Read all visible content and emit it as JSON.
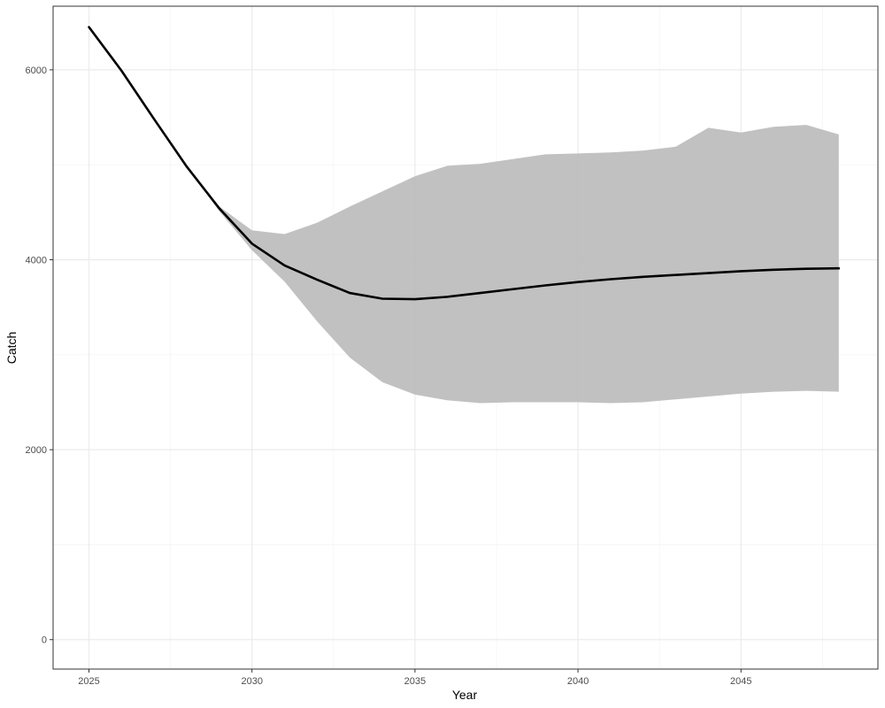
{
  "chart_data": {
    "type": "line",
    "title": "",
    "xlabel": "Year",
    "ylabel": "Catch",
    "xlim": [
      2023.9,
      2049.2
    ],
    "ylim": [
      -310,
      6670
    ],
    "x_major_ticks": [
      2025,
      2030,
      2035,
      2040,
      2045
    ],
    "y_major_ticks": [
      0,
      2000,
      4000,
      6000
    ],
    "x_tick_labels": [
      "2025",
      "2030",
      "2035",
      "2040",
      "2045"
    ],
    "y_tick_labels": [
      "0",
      "2000",
      "4000",
      "6000"
    ],
    "grid": true,
    "legend": "none",
    "colors": {
      "line": "#000000",
      "ribbon": "#bebebe",
      "grid_major": "#ebebeb",
      "grid_minor": "#f5f5f5",
      "panel_border": "#333333"
    },
    "x": [
      2025,
      2026,
      2027,
      2028,
      2029,
      2030,
      2031,
      2032,
      2033,
      2034,
      2035,
      2036,
      2037,
      2038,
      2039,
      2040,
      2041,
      2042,
      2043,
      2044,
      2045,
      2046,
      2047,
      2048
    ],
    "series": [
      {
        "role": "median",
        "values": [
          6450,
          5990,
          5480,
          4980,
          4540,
          4170,
          3940,
          3790,
          3650,
          3590,
          3585,
          3610,
          3650,
          3690,
          3730,
          3765,
          3795,
          3820,
          3840,
          3860,
          3880,
          3895,
          3905,
          3910
        ]
      },
      {
        "role": "ribbon-upper",
        "values": [
          6450,
          5990,
          5480,
          4980,
          4560,
          4310,
          4270,
          4390,
          4560,
          4720,
          4880,
          4990,
          5010,
          5060,
          5110,
          5120,
          5130,
          5150,
          5190,
          5390,
          5340,
          5400,
          5420,
          5320
        ]
      },
      {
        "role": "ribbon-lower",
        "values": [
          6450,
          5990,
          5480,
          4980,
          4510,
          4100,
          3770,
          3350,
          2970,
          2710,
          2580,
          2520,
          2490,
          2500,
          2500,
          2500,
          2490,
          2500,
          2530,
          2560,
          2590,
          2610,
          2620,
          2610
        ]
      }
    ]
  }
}
